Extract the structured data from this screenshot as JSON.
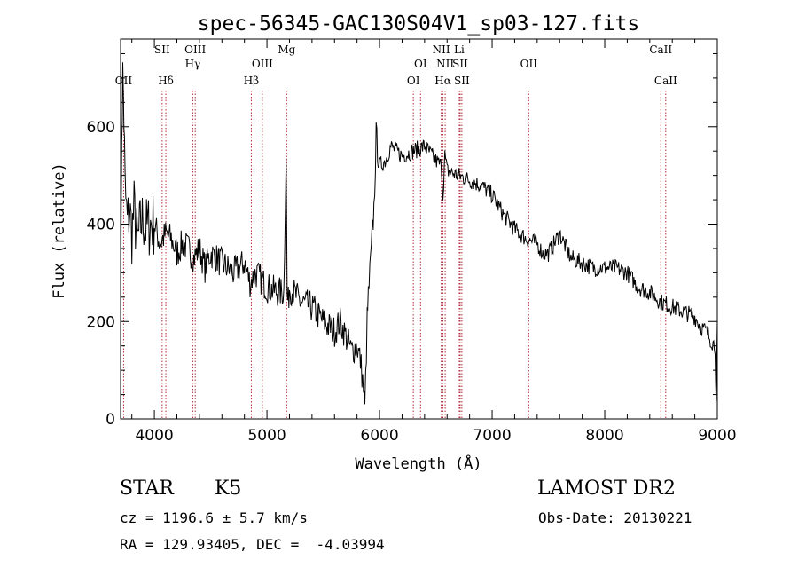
{
  "chart_data": {
    "type": "line",
    "title": "spec-56345-GAC130S04V1_sp03-127.fits",
    "xlabel": "Wavelength (Å)",
    "ylabel": "Flux (relative)",
    "xlim": [
      3700,
      9000
    ],
    "ylim": [
      0,
      780
    ],
    "xticks": [
      4000,
      5000,
      6000,
      7000,
      8000,
      9000
    ],
    "yticks": [
      0,
      200,
      400,
      600
    ],
    "grid": false,
    "series": [
      {
        "x": [
          3700,
          3710,
          3720,
          3730,
          3740,
          3760,
          3780,
          3800,
          3820,
          3850,
          3880,
          3900,
          3930,
          3960,
          4000,
          4050,
          4100,
          4150,
          4200,
          4250,
          4300,
          4350,
          4400,
          4450,
          4500,
          4600,
          4700,
          4800,
          4850,
          4900,
          5000,
          5100,
          5150,
          5170,
          5180,
          5190,
          5200,
          5300,
          5400,
          5500,
          5600,
          5650,
          5700,
          5750,
          5800,
          5830,
          5850,
          5870,
          5890,
          5900,
          5920,
          5950,
          5970,
          6000,
          6050,
          6100,
          6200,
          6300,
          6400,
          6500,
          6550,
          6563,
          6580,
          6600,
          6700,
          6800,
          6900,
          7000,
          7100,
          7200,
          7300,
          7400,
          7450,
          7500,
          7600,
          7700,
          7800,
          7900,
          8000,
          8100,
          8200,
          8300,
          8400,
          8500,
          8600,
          8700,
          8800,
          8850,
          8900,
          8950,
          8980,
          8990,
          9000
        ],
        "y": [
          80,
          600,
          700,
          620,
          470,
          400,
          430,
          380,
          430,
          360,
          400,
          410,
          390,
          400,
          400,
          360,
          380,
          370,
          340,
          360,
          350,
          330,
          350,
          310,
          340,
          320,
          300,
          320,
          280,
          300,
          270,
          260,
          260,
          550,
          250,
          240,
          270,
          240,
          230,
          200,
          180,
          200,
          170,
          140,
          150,
          120,
          80,
          20,
          200,
          250,
          320,
          430,
          580,
          520,
          530,
          560,
          540,
          550,
          560,
          530,
          520,
          460,
          540,
          510,
          500,
          490,
          480,
          460,
          420,
          390,
          370,
          360,
          340,
          340,
          380,
          330,
          320,
          310,
          310,
          310,
          300,
          270,
          260,
          240,
          230,
          220,
          210,
          190,
          180,
          160,
          150,
          30,
          200
        ]
      }
    ],
    "lines": [
      {
        "label": "OII",
        "x": 3727,
        "row": 3
      },
      {
        "label": "SII",
        "x": 4069,
        "row": 1
      },
      {
        "label": "Hδ",
        "x": 4102,
        "row": 3
      },
      {
        "label": "OIII",
        "x": 4363,
        "row": 1
      },
      {
        "label": "Hγ",
        "x": 4341,
        "row": 2
      },
      {
        "label": "Hβ",
        "x": 4861,
        "row": 3
      },
      {
        "label": "OIII",
        "x": 4959,
        "row": 2
      },
      {
        "label": "Mg",
        "x": 5175,
        "row": 1
      },
      {
        "label": "OI",
        "x": 6300,
        "row": 3
      },
      {
        "label": "OI",
        "x": 6364,
        "row": 2
      },
      {
        "label": "NII",
        "x": 6548,
        "row": 1
      },
      {
        "label": "Hα",
        "x": 6563,
        "row": 3
      },
      {
        "label": "NII",
        "x": 6583,
        "row": 2
      },
      {
        "label": "Li",
        "x": 6708,
        "row": 1
      },
      {
        "label": "SII",
        "x": 6716,
        "row": 2
      },
      {
        "label": "SII",
        "x": 6731,
        "row": 3
      },
      {
        "label": "OII",
        "x": 7325,
        "row": 2
      },
      {
        "label": "CaII",
        "x": 8498,
        "row": 1
      },
      {
        "label": "CaII",
        "x": 8542,
        "row": 3
      }
    ]
  },
  "info": {
    "object_class": "STAR",
    "subclass": "K5",
    "survey": "LAMOST DR2",
    "cz": "cz = 1196.6 ± 5.7 km/s",
    "obs_date": "Obs-Date: 20130221",
    "coords": "RA = 129.93405, DEC =  -4.03994"
  }
}
